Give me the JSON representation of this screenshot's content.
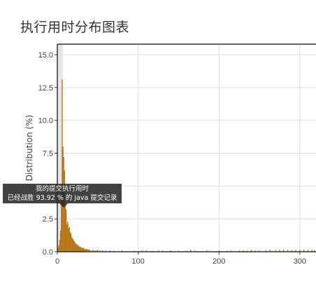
{
  "page_title": "执行用时分布图表",
  "tooltip": {
    "line1": "我的提交执行用时",
    "line2": "已经战胜 93.92 % 的 java 提交记录"
  },
  "chart_data": {
    "type": "bar",
    "title": "",
    "xlabel": "",
    "ylabel": "Distribution (%)",
    "xlim": [
      0,
      320
    ],
    "ylim": [
      0,
      15.8
    ],
    "x_ticks": [
      0,
      100,
      200,
      300
    ],
    "y_ticks": [
      0.0,
      2.5,
      5.0,
      7.5,
      10.0,
      12.5,
      15.0
    ],
    "y_tick_labels": [
      "0.0",
      "2.5",
      "5.0",
      "7.5",
      "10.0",
      "12.5",
      "15.0"
    ],
    "grid": true,
    "bar_color": "#b5761a",
    "highlight_color": "#e6e6e6",
    "highlight_x": [
      0,
      7
    ],
    "x": [
      1,
      2,
      3,
      4,
      5,
      6,
      7,
      8,
      9,
      10,
      11,
      12,
      13,
      14,
      15,
      16,
      17,
      18,
      19,
      20,
      21,
      22,
      23,
      24,
      25,
      26,
      27,
      28,
      29,
      30,
      31,
      32,
      33,
      34,
      35,
      36,
      37,
      38,
      39,
      40,
      42,
      44,
      46,
      48,
      50,
      53,
      56,
      60,
      65,
      70,
      80,
      95,
      105,
      110,
      118,
      125,
      130,
      140,
      150,
      160,
      165,
      170,
      185,
      200,
      210,
      215,
      225,
      230,
      235,
      240,
      245,
      250,
      258,
      263,
      270,
      275,
      280,
      285,
      290,
      295,
      300,
      305,
      310,
      315,
      318
    ],
    "values": [
      0.3,
      0.5,
      0.9,
      1.6,
      4.8,
      13.1,
      8.0,
      7.2,
      6.2,
      3.6,
      3.2,
      2.1,
      2.3,
      1.8,
      1.9,
      1.5,
      1.4,
      1.1,
      1.0,
      0.9,
      0.8,
      0.7,
      0.6,
      0.6,
      0.5,
      0.5,
      0.4,
      0.4,
      0.35,
      0.3,
      0.3,
      0.3,
      0.25,
      0.2,
      0.2,
      0.2,
      0.2,
      0.15,
      0.15,
      0.15,
      0.1,
      0.15,
      0.1,
      0.1,
      0.15,
      0.1,
      0.1,
      0.1,
      0.1,
      0.08,
      0.1,
      0.08,
      0.1,
      0.1,
      0.08,
      0.1,
      0.08,
      0.1,
      0.08,
      0.08,
      0.15,
      0.08,
      0.1,
      0.08,
      0.08,
      0.1,
      0.1,
      0.1,
      0.08,
      0.15,
      0.1,
      0.1,
      0.12,
      0.15,
      0.15,
      0.15,
      0.15,
      0.15,
      0.12,
      0.15,
      0.15,
      0.15,
      0.15,
      0.15,
      0.12
    ]
  }
}
